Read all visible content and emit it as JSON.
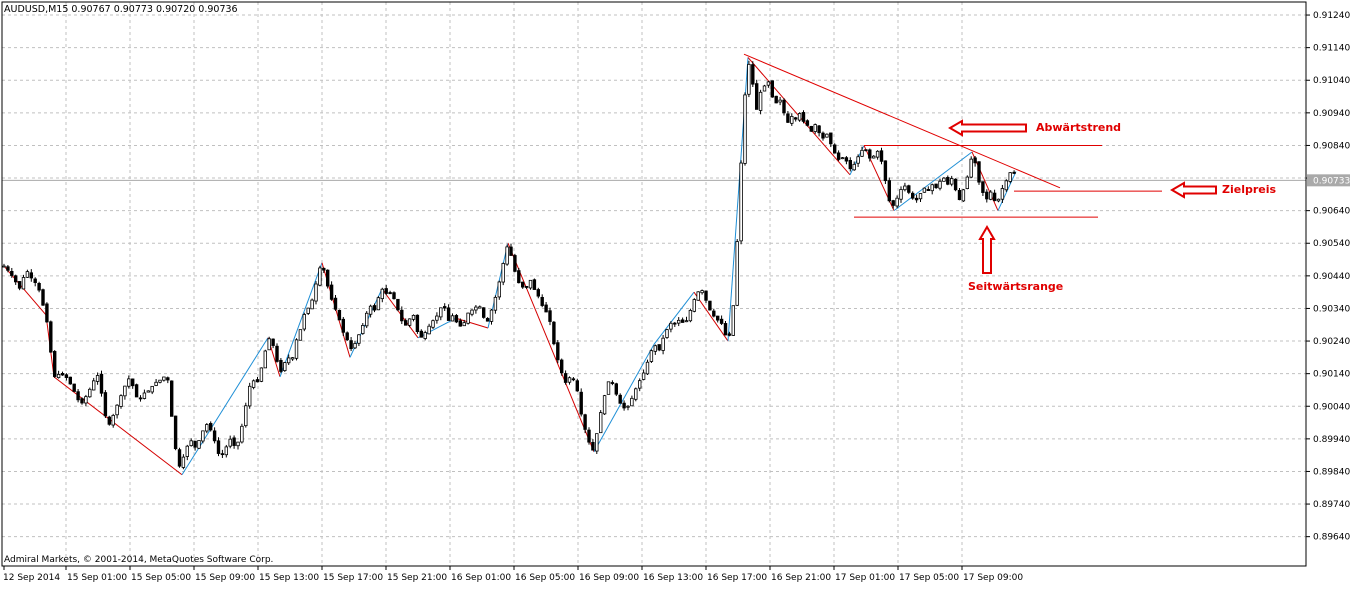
{
  "window": {
    "header": "AUDUSD,M15  0.90767 0.90773 0.90720 0.90736",
    "copyright": "Admiral Markets, © 2001-2014, MetaQuotes Software Corp."
  },
  "colors": {
    "background": "#ffffff",
    "grid": "#c0c0c0",
    "candle": "#000000",
    "zigzag_up": "#1f8fd6",
    "zigzag_down": "#d40000",
    "annotation": "#e00000",
    "price_line": "#a9a9a9",
    "price_tag_bg": "#a9a9a9",
    "price_tag_text": "#ffffff"
  },
  "chart_data": {
    "type": "candlestick",
    "symbol": "AUDUSD",
    "timeframe": "M15",
    "ylim": [
      0.8955,
      0.9128
    ],
    "y_ticks": [
      "0.91240",
      "0.91140",
      "0.91040",
      "0.90940",
      "0.90840",
      "0.90740",
      "0.90640",
      "0.90540",
      "0.90440",
      "0.90340",
      "0.90240",
      "0.90140",
      "0.90040",
      "0.89940",
      "0.89840",
      "0.89740",
      "0.89640"
    ],
    "x_ticks": [
      "12 Sep 2014",
      "15 Sep 01:00",
      "15 Sep 05:00",
      "15 Sep 09:00",
      "15 Sep 13:00",
      "15 Sep 17:00",
      "15 Sep 21:00",
      "16 Sep 01:00",
      "16 Sep 05:00",
      "16 Sep 09:00",
      "16 Sep 13:00",
      "16 Sep 17:00",
      "16 Sep 21:00",
      "17 Sep 01:00",
      "17 Sep 05:00",
      "17 Sep 09:00"
    ],
    "current_price": "0.90733",
    "close_path": [
      [
        0,
        0.9047
      ],
      [
        6,
        0.9045
      ],
      [
        12,
        0.9042
      ],
      [
        16,
        0.904
      ],
      [
        22,
        0.9046
      ],
      [
        28,
        0.9043
      ],
      [
        34,
        0.9041
      ],
      [
        38,
        0.9036
      ],
      [
        42,
        0.9032
      ],
      [
        50,
        0.9013
      ],
      [
        56,
        0.9014
      ],
      [
        62,
        0.9013
      ],
      [
        68,
        0.901
      ],
      [
        74,
        0.9006
      ],
      [
        78,
        0.9005
      ],
      [
        84,
        0.9008
      ],
      [
        90,
        0.9012
      ],
      [
        95,
        0.9014
      ],
      [
        100,
        0.9002
      ],
      [
        106,
        0.8998
      ],
      [
        110,
        0.9002
      ],
      [
        114,
        0.9005
      ],
      [
        118,
        0.9008
      ],
      [
        122,
        0.9011
      ],
      [
        126,
        0.9013
      ],
      [
        132,
        0.9007
      ],
      [
        136,
        0.9006
      ],
      [
        140,
        0.9008
      ],
      [
        146,
        0.9009
      ],
      [
        150,
        0.9011
      ],
      [
        156,
        0.9012
      ],
      [
        160,
        0.9013
      ],
      [
        164,
        0.9012
      ],
      [
        168,
        0.9
      ],
      [
        172,
        0.899
      ],
      [
        176,
        0.8985
      ],
      [
        180,
        0.8989
      ],
      [
        186,
        0.8994
      ],
      [
        192,
        0.8991
      ],
      [
        198,
        0.8996
      ],
      [
        204,
        0.8999
      ],
      [
        210,
        0.8994
      ],
      [
        216,
        0.8988
      ],
      [
        220,
        0.899
      ],
      [
        226,
        0.8994
      ],
      [
        232,
        0.8991
      ],
      [
        236,
        0.8995
      ],
      [
        240,
        0.9001
      ],
      [
        244,
        0.9008
      ],
      [
        248,
        0.9013
      ],
      [
        252,
        0.901
      ],
      [
        256,
        0.9014
      ],
      [
        260,
        0.9019
      ],
      [
        264,
        0.9025
      ],
      [
        268,
        0.9024
      ],
      [
        272,
        0.9019
      ],
      [
        276,
        0.9014
      ],
      [
        280,
        0.9017
      ],
      [
        284,
        0.9019
      ],
      [
        288,
        0.9018
      ],
      [
        292,
        0.9024
      ],
      [
        296,
        0.9027
      ],
      [
        300,
        0.9032
      ],
      [
        306,
        0.9035
      ],
      [
        310,
        0.9038
      ],
      [
        314,
        0.9045
      ],
      [
        318,
        0.9048
      ],
      [
        322,
        0.9043
      ],
      [
        326,
        0.9038
      ],
      [
        330,
        0.9035
      ],
      [
        336,
        0.903
      ],
      [
        340,
        0.9026
      ],
      [
        344,
        0.9024
      ],
      [
        348,
        0.9021
      ],
      [
        352,
        0.9024
      ],
      [
        358,
        0.9028
      ],
      [
        362,
        0.9032
      ],
      [
        366,
        0.9035
      ],
      [
        370,
        0.9033
      ],
      [
        374,
        0.9037
      ],
      [
        378,
        0.904
      ],
      [
        384,
        0.9038
      ],
      [
        388,
        0.9039
      ],
      [
        392,
        0.9035
      ],
      [
        396,
        0.9032
      ],
      [
        400,
        0.9028
      ],
      [
        406,
        0.9031
      ],
      [
        410,
        0.9032
      ],
      [
        414,
        0.9026
      ],
      [
        418,
        0.9025
      ],
      [
        424,
        0.9028
      ],
      [
        428,
        0.903
      ],
      [
        432,
        0.9031
      ],
      [
        436,
        0.9034
      ],
      [
        440,
        0.9035
      ],
      [
        444,
        0.903
      ],
      [
        448,
        0.9032
      ],
      [
        452,
        0.903
      ],
      [
        458,
        0.9028
      ],
      [
        462,
        0.9031
      ],
      [
        466,
        0.9034
      ],
      [
        470,
        0.9033
      ],
      [
        474,
        0.9036
      ],
      [
        480,
        0.9031
      ],
      [
        484,
        0.903
      ],
      [
        488,
        0.9034
      ],
      [
        492,
        0.9038
      ],
      [
        496,
        0.9043
      ],
      [
        500,
        0.9049
      ],
      [
        504,
        0.9054
      ],
      [
        508,
        0.9049
      ],
      [
        512,
        0.9044
      ],
      [
        516,
        0.9041
      ],
      [
        522,
        0.904
      ],
      [
        526,
        0.9043
      ],
      [
        530,
        0.904
      ],
      [
        534,
        0.9038
      ],
      [
        538,
        0.9035
      ],
      [
        542,
        0.9033
      ],
      [
        546,
        0.903
      ],
      [
        550,
        0.9023
      ],
      [
        554,
        0.9018
      ],
      [
        558,
        0.9014
      ],
      [
        562,
        0.9011
      ],
      [
        566,
        0.9013
      ],
      [
        570,
        0.9012
      ],
      [
        574,
        0.9008
      ],
      [
        578,
        0.9
      ],
      [
        582,
        0.8996
      ],
      [
        586,
        0.8992
      ],
      [
        590,
        0.899
      ],
      [
        594,
        0.8998
      ],
      [
        598,
        0.9004
      ],
      [
        602,
        0.9009
      ],
      [
        606,
        0.9013
      ],
      [
        610,
        0.901
      ],
      [
        614,
        0.9006
      ],
      [
        618,
        0.9004
      ],
      [
        622,
        0.9003
      ],
      [
        626,
        0.9005
      ],
      [
        630,
        0.9008
      ],
      [
        634,
        0.9011
      ],
      [
        638,
        0.9013
      ],
      [
        642,
        0.9016
      ],
      [
        646,
        0.902
      ],
      [
        650,
        0.9023
      ],
      [
        656,
        0.9021
      ],
      [
        660,
        0.9026
      ],
      [
        664,
        0.9028
      ],
      [
        668,
        0.903
      ],
      [
        672,
        0.9029
      ],
      [
        676,
        0.9031
      ],
      [
        680,
        0.9029
      ],
      [
        684,
        0.9031
      ],
      [
        688,
        0.9035
      ],
      [
        692,
        0.9038
      ],
      [
        696,
        0.904
      ],
      [
        700,
        0.9039
      ],
      [
        704,
        0.9034
      ],
      [
        708,
        0.9033
      ],
      [
        712,
        0.903
      ],
      [
        716,
        0.9031
      ],
      [
        720,
        0.9027
      ],
      [
        724,
        0.9024
      ],
      [
        728,
        0.9029
      ],
      [
        732,
        0.9047
      ],
      [
        736,
        0.9072
      ],
      [
        740,
        0.9096
      ],
      [
        744,
        0.911
      ],
      [
        748,
        0.9105
      ],
      [
        752,
        0.9094
      ],
      [
        756,
        0.91
      ],
      [
        760,
        0.9102
      ],
      [
        764,
        0.9104
      ],
      [
        768,
        0.9099
      ],
      [
        772,
        0.9097
      ],
      [
        776,
        0.9098
      ],
      [
        780,
        0.9094
      ],
      [
        784,
        0.9091
      ],
      [
        788,
        0.9093
      ],
      [
        792,
        0.9092
      ],
      [
        796,
        0.9094
      ],
      [
        800,
        0.9091
      ],
      [
        804,
        0.909
      ],
      [
        808,
        0.9088
      ],
      [
        812,
        0.9091
      ],
      [
        816,
        0.9087
      ],
      [
        820,
        0.9086
      ],
      [
        824,
        0.9088
      ],
      [
        828,
        0.9083
      ],
      [
        832,
        0.9081
      ],
      [
        836,
        0.9079
      ],
      [
        840,
        0.9081
      ],
      [
        844,
        0.9078
      ],
      [
        848,
        0.9076
      ],
      [
        852,
        0.908
      ],
      [
        856,
        0.9081
      ],
      [
        860,
        0.9084
      ],
      [
        864,
        0.9081
      ],
      [
        868,
        0.9079
      ],
      [
        872,
        0.9083
      ],
      [
        876,
        0.9081
      ],
      [
        880,
        0.9076
      ],
      [
        884,
        0.9068
      ],
      [
        888,
        0.9065
      ],
      [
        892,
        0.9067
      ],
      [
        896,
        0.907
      ],
      [
        900,
        0.9072
      ],
      [
        904,
        0.907
      ],
      [
        908,
        0.9068
      ],
      [
        912,
        0.9067
      ],
      [
        916,
        0.9069
      ],
      [
        920,
        0.9071
      ],
      [
        924,
        0.907
      ],
      [
        928,
        0.9072
      ],
      [
        932,
        0.9071
      ],
      [
        936,
        0.9073
      ],
      [
        940,
        0.9074
      ],
      [
        944,
        0.9072
      ],
      [
        948,
        0.9074
      ],
      [
        952,
        0.907
      ],
      [
        956,
        0.9067
      ],
      [
        960,
        0.9071
      ],
      [
        964,
        0.9075
      ],
      [
        968,
        0.9081
      ],
      [
        972,
        0.9078
      ],
      [
        976,
        0.9071
      ],
      [
        980,
        0.9069
      ],
      [
        984,
        0.9067
      ],
      [
        988,
        0.9071
      ],
      [
        992,
        0.9065
      ],
      [
        996,
        0.9069
      ],
      [
        1000,
        0.9072
      ],
      [
        1004,
        0.9074
      ],
      [
        1008,
        0.9077
      ],
      [
        1012,
        0.9074
      ]
    ],
    "zigzag": [
      [
        0,
        0.9047
      ],
      [
        42,
        0.9032
      ],
      [
        50,
        0.9013
      ],
      [
        178,
        0.8983
      ],
      [
        264,
        0.9025
      ],
      [
        276,
        0.9013
      ],
      [
        318,
        0.9048
      ],
      [
        346,
        0.9019
      ],
      [
        378,
        0.904
      ],
      [
        414,
        0.9025
      ],
      [
        452,
        0.9031
      ],
      [
        484,
        0.9028
      ],
      [
        504,
        0.9054
      ],
      [
        590,
        0.899
      ],
      [
        650,
        0.9023
      ],
      [
        690,
        0.9039
      ],
      [
        724,
        0.9024
      ],
      [
        744,
        0.9111
      ],
      [
        846,
        0.9075
      ],
      [
        860,
        0.9084
      ],
      [
        890,
        0.9064
      ],
      [
        968,
        0.9082
      ],
      [
        994,
        0.9064
      ],
      [
        1012,
        0.9076
      ]
    ],
    "annotations": {
      "downtrend_label": "Abwärtstrend",
      "target_label": "Zielpreis",
      "range_label": "Seitwärtsrange"
    }
  }
}
